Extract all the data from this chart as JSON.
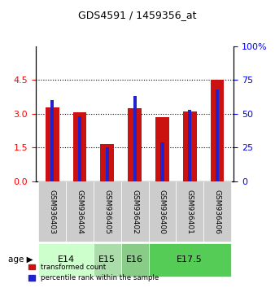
{
  "title": "GDS4591 / 1459356_at",
  "samples": [
    "GSM936403",
    "GSM936404",
    "GSM936405",
    "GSM936402",
    "GSM936400",
    "GSM936401",
    "GSM936406"
  ],
  "transformed_counts": [
    3.3,
    3.05,
    1.65,
    3.25,
    2.85,
    3.1,
    4.5
  ],
  "percentile_ranks": [
    60,
    48,
    25,
    63,
    29,
    53,
    68
  ],
  "age_groups": [
    {
      "label": "E14",
      "samples": [
        "GSM936403",
        "GSM936404"
      ],
      "color": "#ccffcc"
    },
    {
      "label": "E15",
      "samples": [
        "GSM936405"
      ],
      "color": "#aaddaa"
    },
    {
      "label": "E16",
      "samples": [
        "GSM936402"
      ],
      "color": "#88cc88"
    },
    {
      "label": "E17.5",
      "samples": [
        "GSM936400",
        "GSM936401",
        "GSM936406"
      ],
      "color": "#55cc55"
    }
  ],
  "ylim_left": [
    0,
    6
  ],
  "ylim_right": [
    0,
    100
  ],
  "yticks_left": [
    0,
    1.5,
    3.0,
    4.5
  ],
  "yticks_right": [
    0,
    25,
    50,
    75,
    100
  ],
  "bar_color_red": "#cc1111",
  "bar_color_blue": "#2222cc",
  "bar_width": 0.5,
  "bg_color_samples": "#cccccc",
  "bg_color_age_light": "#ccffcc",
  "bg_color_age_medium": "#99ee99",
  "bg_color_age_dark": "#55cc55"
}
